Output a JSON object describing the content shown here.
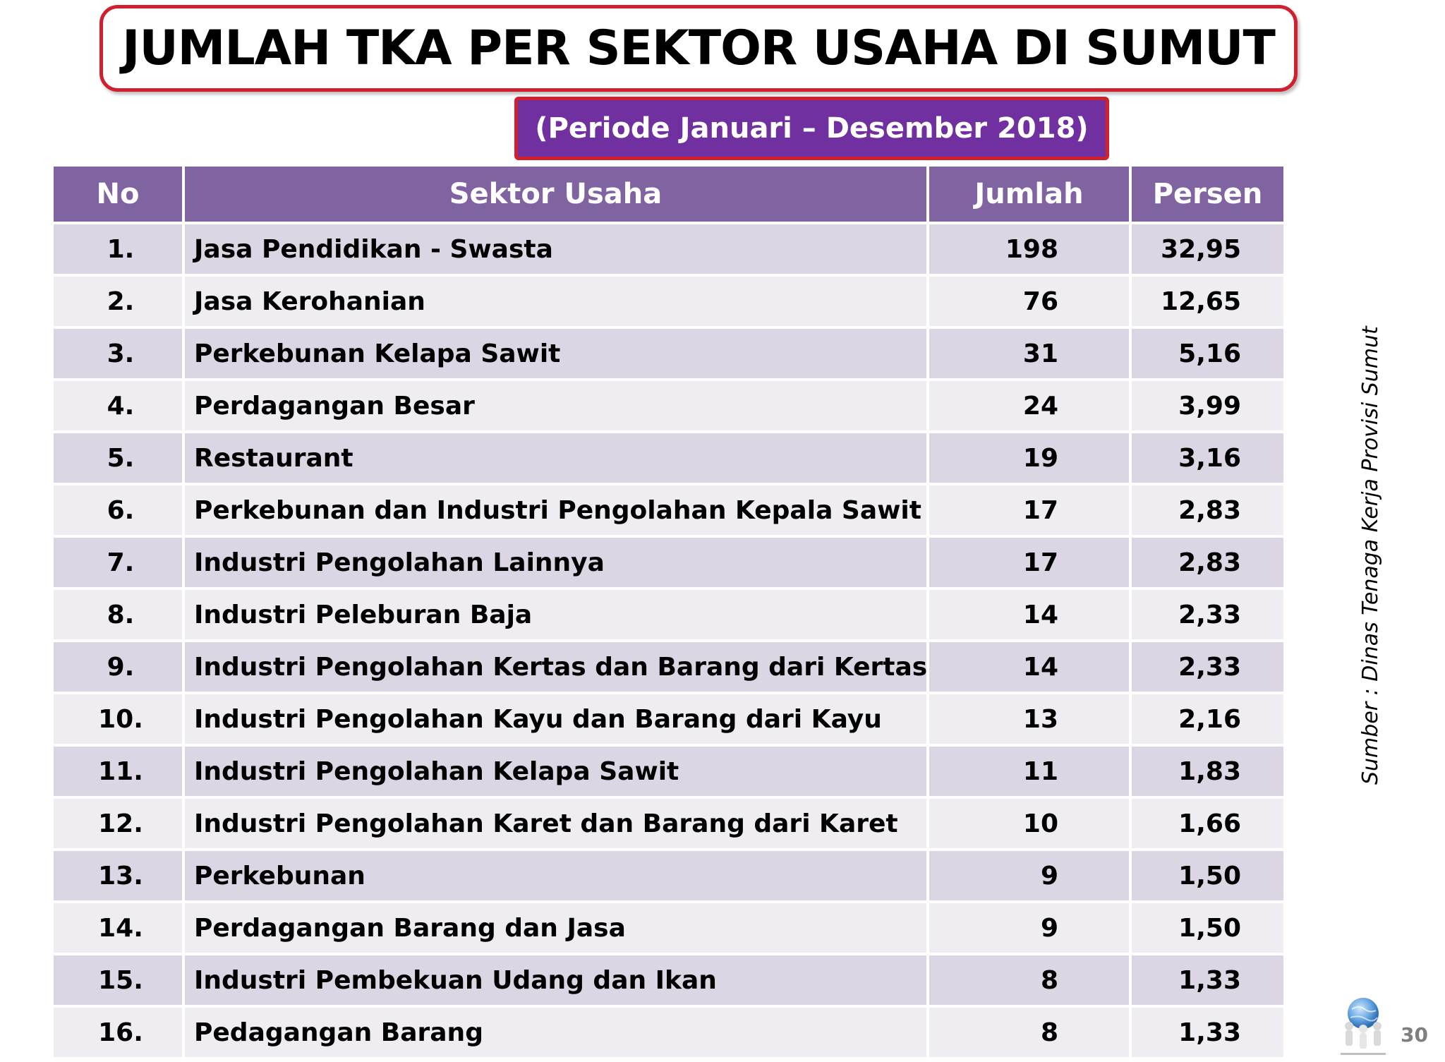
{
  "title": "JUMLAH TKA PER SEKTOR USAHA DI SUMUT",
  "period": "(Periode Januari – Desember 2018)",
  "table": {
    "headers": {
      "no": "No",
      "sector": "Sektor Usaha",
      "jumlah": "Jumlah",
      "persen": "Persen"
    },
    "rows": [
      {
        "no": "1.",
        "sector": "Jasa Pendidikan - Swasta",
        "jumlah": "198",
        "persen": "32,95"
      },
      {
        "no": "2.",
        "sector": "Jasa Kerohanian",
        "jumlah": "76",
        "persen": "12,65"
      },
      {
        "no": "3.",
        "sector": "Perkebunan Kelapa Sawit",
        "jumlah": "31",
        "persen": "5,16"
      },
      {
        "no": "4.",
        "sector": "Perdagangan Besar",
        "jumlah": "24",
        "persen": "3,99"
      },
      {
        "no": "5.",
        "sector": "Restaurant",
        "jumlah": "19",
        "persen": "3,16"
      },
      {
        "no": "6.",
        "sector": "Perkebunan dan Industri Pengolahan Kepala Sawit",
        "jumlah": "17",
        "persen": "2,83"
      },
      {
        "no": "7.",
        "sector": "Industri Pengolahan Lainnya",
        "jumlah": "17",
        "persen": "2,83"
      },
      {
        "no": "8.",
        "sector": "Industri Peleburan Baja",
        "jumlah": "14",
        "persen": "2,33"
      },
      {
        "no": "9.",
        "sector": "Industri Pengolahan Kertas dan Barang dari Kertas",
        "jumlah": "14",
        "persen": "2,33"
      },
      {
        "no": "10.",
        "sector": "Industri Pengolahan Kayu dan Barang dari Kayu",
        "jumlah": "13",
        "persen": "2,16"
      },
      {
        "no": "11.",
        "sector": "Industri Pengolahan Kelapa Sawit",
        "jumlah": "11",
        "persen": "1,83"
      },
      {
        "no": "12.",
        "sector": "Industri Pengolahan Karet dan Barang dari Karet",
        "jumlah": "10",
        "persen": "1,66"
      },
      {
        "no": "13.",
        "sector": "Perkebunan",
        "jumlah": "9",
        "persen": "1,50"
      },
      {
        "no": "14.",
        "sector": "Perdagangan Barang dan Jasa",
        "jumlah": "9",
        "persen": "1,50"
      },
      {
        "no": "15.",
        "sector": "Industri Pembekuan Udang dan Ikan",
        "jumlah": "8",
        "persen": "1,33"
      },
      {
        "no": "16.",
        "sector": "Pedagangan Barang",
        "jumlah": "8",
        "persen": "1,33"
      }
    ]
  },
  "source_note": "Sumber : Dinas Tenaga Kerja Provisi Sumut",
  "page_number": "30",
  "colors": {
    "title_border": "#d0202e",
    "period_fill": "#7030a0",
    "header_fill": "#8064a2",
    "row_odd": "#dcd6e4",
    "row_even": "#efedf2"
  },
  "icons": {
    "logo": "globe-figures-logo"
  }
}
